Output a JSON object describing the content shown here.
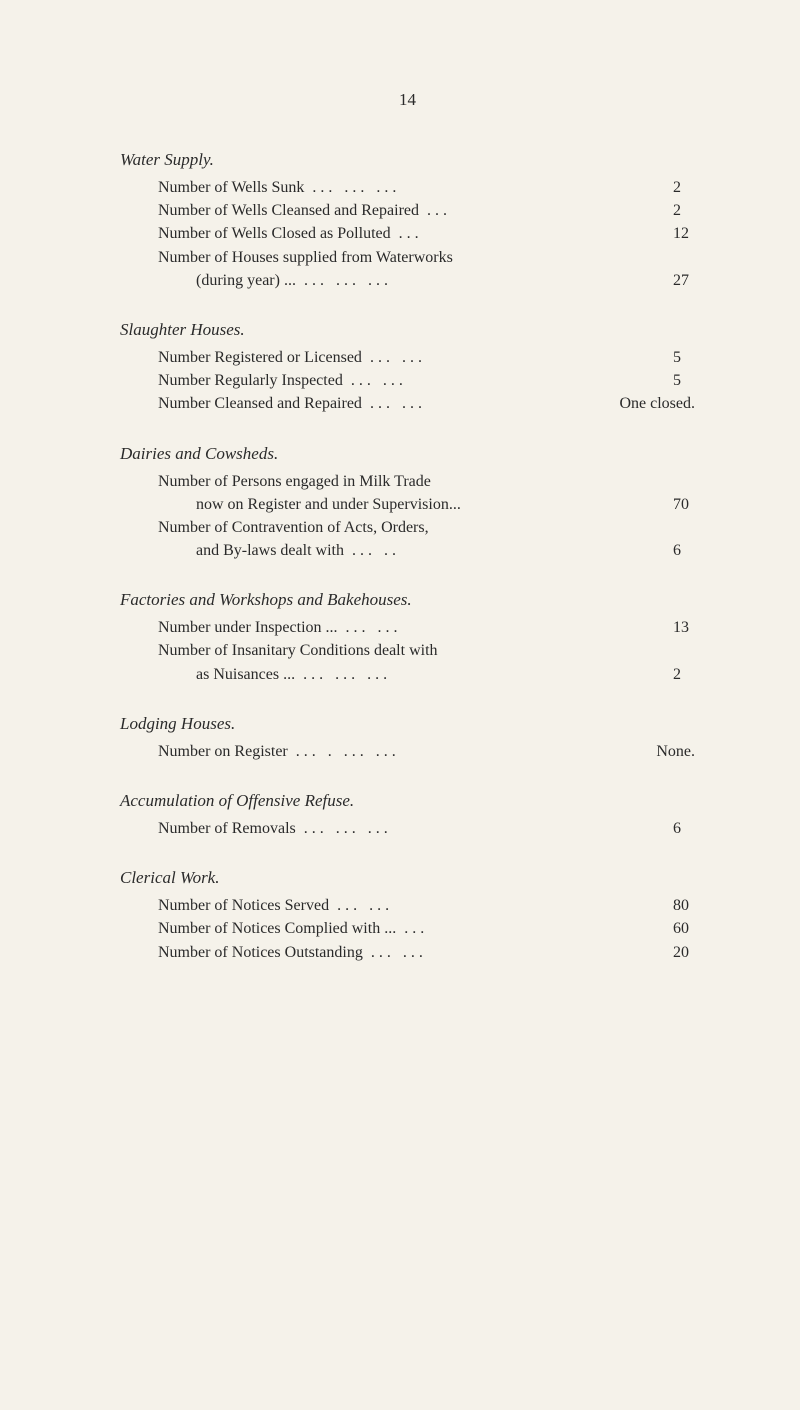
{
  "page_number": "14",
  "sections": [
    {
      "heading": "Water Supply.",
      "rows": [
        {
          "label": "Number of Wells Sunk",
          "dots": "...       ...       ...",
          "value": "2",
          "indent": "normal"
        },
        {
          "label": "Number of Wells Cleansed and Repaired",
          "dots": "...",
          "value": "2",
          "indent": "normal"
        },
        {
          "label": "Number of Wells Closed as Polluted",
          "dots": "...",
          "value": "12",
          "indent": "normal"
        },
        {
          "label": "Number of Houses supplied from Waterworks",
          "dots": "",
          "value": "",
          "indent": "normal"
        },
        {
          "label": "(during year) ...",
          "dots": "...       ...       ...",
          "value": "27",
          "indent": "continuation"
        }
      ]
    },
    {
      "heading": "Slaughter Houses.",
      "rows": [
        {
          "label": "Number Registered or Licensed",
          "dots": "...       ...",
          "value": "5",
          "indent": "normal"
        },
        {
          "label": "Number Regularly Inspected",
          "dots": "...       ...",
          "value": "5",
          "indent": "normal"
        },
        {
          "label": "Number Cleansed and Repaired",
          "dots": "...       ...",
          "value": "One closed.",
          "indent": "normal"
        }
      ]
    },
    {
      "heading": "Dairies and Cowsheds.",
      "rows": [
        {
          "label": "Number of Persons engaged in Milk Trade",
          "dots": "",
          "value": "",
          "indent": "normal"
        },
        {
          "label": "now on Register and under Supervision...",
          "dots": "",
          "value": "70",
          "indent": "continuation"
        },
        {
          "label": "Number of Contravention of Acts, Orders,",
          "dots": "",
          "value": "",
          "indent": "normal"
        },
        {
          "label": "and By-laws dealt with",
          "dots": "...       ..",
          "value": "6",
          "indent": "continuation"
        }
      ]
    },
    {
      "heading": "Factories and Workshops and Bakehouses.",
      "rows": [
        {
          "label": "Number under Inspection ...",
          "dots": "...       ...",
          "value": "13",
          "indent": "normal"
        },
        {
          "label": "Number of Insanitary Conditions dealt with",
          "dots": "",
          "value": "",
          "indent": "normal"
        },
        {
          "label": "as Nuisances ...",
          "dots": "...       ...       ...",
          "value": "2",
          "indent": "continuation"
        }
      ]
    },
    {
      "heading": "Lodging Houses.",
      "rows": [
        {
          "label": "Number on Register",
          "dots": "...   .  ...       ...",
          "value": "None.",
          "indent": "normal"
        }
      ]
    },
    {
      "heading": "Accumulation of Offensive Refuse.",
      "rows": [
        {
          "label": "Number of Removals",
          "dots": "...       ...       ...",
          "value": "6",
          "indent": "normal"
        }
      ]
    },
    {
      "heading": "Clerical Work.",
      "rows": [
        {
          "label": "Number of Notices Served",
          "dots": "...       ...",
          "value": "80",
          "indent": "normal"
        },
        {
          "label": "Number of Notices Complied with ...",
          "dots": "...",
          "value": "60",
          "indent": "normal"
        },
        {
          "label": "Number of Notices Outstanding",
          "dots": "...       ...",
          "value": "20",
          "indent": "normal"
        }
      ]
    }
  ]
}
